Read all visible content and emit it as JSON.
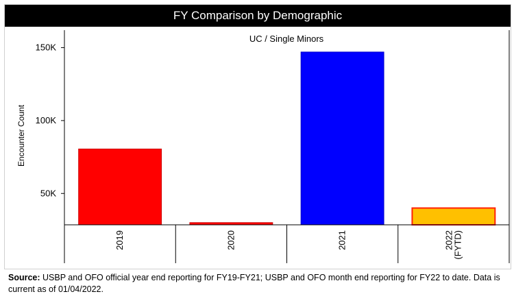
{
  "header": {
    "title": "FY Comparison by Demographic"
  },
  "chart_data": {
    "type": "bar",
    "title": "FY Comparison by Demographic",
    "subtitle": "UC / Single Minors",
    "xlabel": "",
    "ylabel": "Encounter Count",
    "categories": [
      "2019",
      "2020",
      "2021",
      "2022 (FYTD)"
    ],
    "category_lines": [
      [
        "2019"
      ],
      [
        "2020"
      ],
      [
        "2021"
      ],
      [
        "2022",
        "(FYTD)"
      ]
    ],
    "values": [
      80500,
      30000,
      147000,
      40000
    ],
    "bar_colors": [
      "#ff0000",
      "#ff0000",
      "#0000ff",
      "#ffc000"
    ],
    "bar_borders": [
      "#cc0000",
      "#cc0000",
      "#0000cc",
      "#ff2000"
    ],
    "yticks": [
      50000,
      100000,
      150000
    ],
    "ytick_labels": [
      "50K",
      "100K",
      "150K"
    ],
    "ylim": [
      28500,
      162000
    ],
    "grid": false
  },
  "source": {
    "label": "Source:",
    "text": " USBP and OFO official year end reporting for FY19-FY21; USBP and OFO month end reporting for FY22 to date. Data is current as of 01/04/2022."
  }
}
